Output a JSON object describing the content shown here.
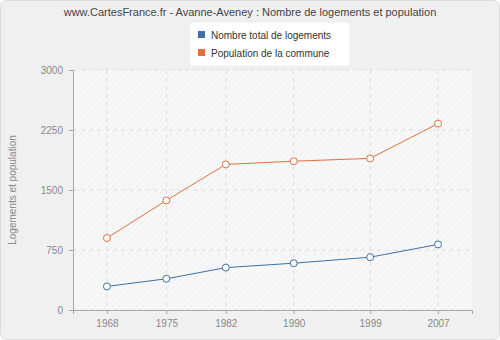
{
  "chart_data": {
    "type": "line",
    "title": "www.CartesFrance.fr - Avanne-Aveney : Nombre de logements et population",
    "y_label": "Logements et population",
    "x": [
      1968,
      1975,
      1982,
      1990,
      1999,
      2007
    ],
    "series": [
      {
        "name": "Nombre total de logements",
        "color": "#3e6fa5",
        "marker": "circle",
        "values": [
          295,
          390,
          530,
          585,
          660,
          820
        ]
      },
      {
        "name": "Population de la commune",
        "color": "#e0703f",
        "marker": "circle",
        "values": [
          900,
          1370,
          1820,
          1860,
          1895,
          2330
        ]
      }
    ],
    "xlim": [
      1964,
      2011
    ],
    "xticks": [
      1968,
      1975,
      1982,
      1990,
      1999,
      2007
    ],
    "ylim": [
      0,
      3000
    ],
    "yticks": [
      0,
      750,
      1500,
      2250,
      3000
    ],
    "grid": true,
    "legend": "top"
  }
}
